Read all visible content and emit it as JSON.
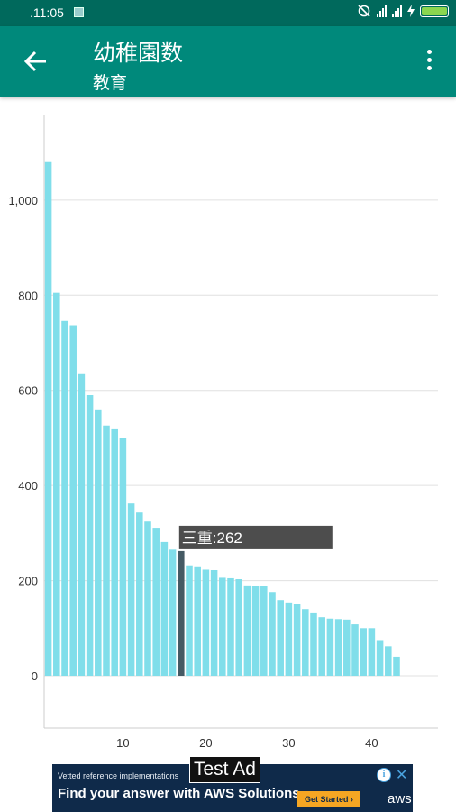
{
  "status_bar": {
    "time": ".11:05"
  },
  "app_bar": {
    "title": "幼稚園数",
    "subtitle": "教育"
  },
  "tooltip": {
    "text": "三重:262"
  },
  "chart_data": {
    "type": "bar",
    "title": "",
    "xlabel": "",
    "ylabel": "",
    "x": [
      1,
      2,
      3,
      4,
      5,
      6,
      7,
      8,
      9,
      10,
      11,
      12,
      13,
      14,
      15,
      16,
      17,
      18,
      19,
      20,
      21,
      22,
      23,
      24,
      25,
      26,
      27,
      28,
      29,
      30,
      31,
      32,
      33,
      34,
      35,
      36,
      37,
      38,
      39,
      40,
      41,
      42,
      43
    ],
    "values": [
      1080,
      805,
      746,
      737,
      636,
      590,
      560,
      526,
      520,
      500,
      362,
      343,
      324,
      311,
      281,
      265,
      262,
      232,
      230,
      223,
      222,
      206,
      205,
      203,
      190,
      189,
      188,
      176,
      159,
      154,
      150,
      140,
      133,
      123,
      120,
      119,
      118,
      108,
      100,
      100,
      75,
      62,
      40
    ],
    "highlight_index": 16,
    "ylim": [
      -110,
      1180
    ],
    "xlim": [
      0.5,
      48
    ],
    "yticks": [
      0,
      200,
      400,
      600,
      800,
      1000
    ],
    "ytick_labels": [
      "0",
      "200",
      "400",
      "600",
      "800",
      "1,000"
    ],
    "xticks": [
      10,
      20,
      30,
      40
    ],
    "xtick_labels": [
      "10",
      "20",
      "30",
      "40"
    ],
    "grid": true,
    "colors": {
      "bar": "#80deea",
      "highlight": "#455a64",
      "grid": "#e0e0e0",
      "axis": "#cccccc",
      "tooltip_bg": "#4d4d4d"
    }
  },
  "ad": {
    "label": "Test Ad",
    "line1": "Vetted reference implementations",
    "line2": "Find your answer with AWS Solutions",
    "cta": "Get Started ›",
    "brand": "aws",
    "info_icon": "i",
    "close_icon": "✕"
  }
}
